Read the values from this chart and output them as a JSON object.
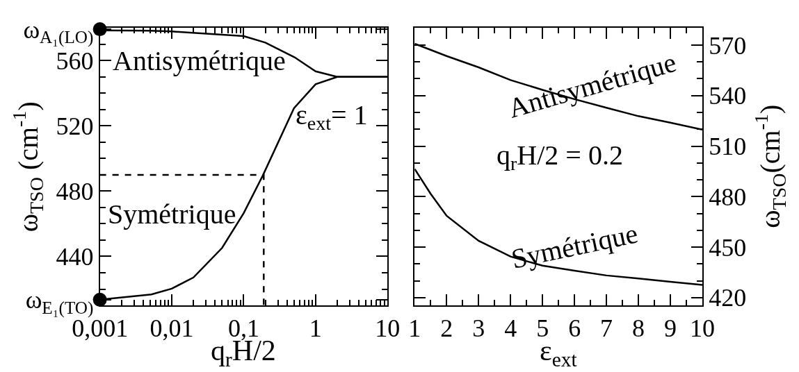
{
  "chart_data": [
    {
      "type": "line",
      "xlabel": "q$_{r}$H/2",
      "ylabel": "ω$_{TSO}$ (cm$^{-1}$)",
      "log": "x",
      "xlim": [
        0.001,
        10
      ],
      "xticks": [
        {
          "value": 0.001,
          "label": "0,001"
        },
        {
          "value": 0.01,
          "label": "0,01"
        },
        {
          "value": 0.1,
          "label": "0,1"
        },
        1,
        10
      ],
      "ylim": [
        410,
        580
      ],
      "yticks": [
        {
          "value": 413.5,
          "label": "ω$_{E₁(TO)}$"
        },
        440,
        480,
        520,
        560,
        {
          "value": 579.2,
          "label": "ω$_{A₁(LO)}$"
        }
      ],
      "marker": "none",
      "line_style": "solid",
      "series": [
        {
          "color": "#000000",
          "x": [
            0.001,
            0.005,
            0.01,
            0.1,
            0.2,
            0.51,
            1,
            2,
            10
          ],
          "values": [
            578.5,
            578.3,
            577.8,
            575,
            571,
            562,
            553.4,
            550,
            550
          ]
        },
        {
          "color": "#000000",
          "x": [
            0.001,
            0.0052,
            0.01,
            0.02,
            0.05,
            0.1,
            0.185,
            0.5,
            1,
            2,
            10
          ],
          "values": [
            413.5,
            416.7,
            420.3,
            427.1,
            445.2,
            466.5,
            489.7,
            530.8,
            545.5,
            550,
            550
          ]
        },
        {
          "color": "#000000",
          "x": [
            0.001,
            0.19,
            0.19
          ],
          "values": [
            490,
            490,
            410
          ],
          "line_style": "dashed"
        },
        {
          "type": "scatter",
          "marker": "circle",
          "color": "#000000",
          "x": [
            0.001,
            0.001
          ],
          "values": [
            579.2,
            413.5
          ]
        }
      ],
      "annotations": [
        "Antisymétrique",
        "Symétrique",
        "ε$_{ext}$= 1"
      ]
    },
    {
      "type": "line",
      "xlabel": "ε$_{ext}$",
      "y2label": "ω$_{TSO}$(cm$^{-1}$)",
      "xlim": [
        1,
        10
      ],
      "xticks": [
        1,
        2,
        3,
        4,
        5,
        6,
        7,
        8,
        9,
        10
      ],
      "y2lim": [
        415.4,
        580.2
      ],
      "y2ticks": [
        420,
        450,
        480,
        510,
        540,
        570
      ],
      "marker": "none",
      "line_style": "solid",
      "x": [
        1,
        2,
        3,
        4,
        5,
        6,
        7,
        8,
        9,
        10
      ],
      "series": [
        {
          "color": "#000000",
          "axis": "y2",
          "values": [
            570.8,
            563.5,
            556.8,
            549.2,
            543.4,
            537.9,
            532.8,
            527.8,
            523.9,
            519.8
          ]
        },
        {
          "color": "#000000",
          "axis": "y2",
          "x": [
            1,
            1.5,
            2,
            3,
            4,
            5,
            6,
            7,
            8,
            9,
            10
          ],
          "values": [
            496.4,
            481.7,
            468.6,
            453.8,
            444.4,
            439,
            436,
            433.2,
            431.4,
            429.4,
            427.6
          ]
        }
      ],
      "annotations": [
        "Antisymétrique",
        "Symétrique",
        "q$_{r}$H/2 = 0.2"
      ]
    }
  ]
}
